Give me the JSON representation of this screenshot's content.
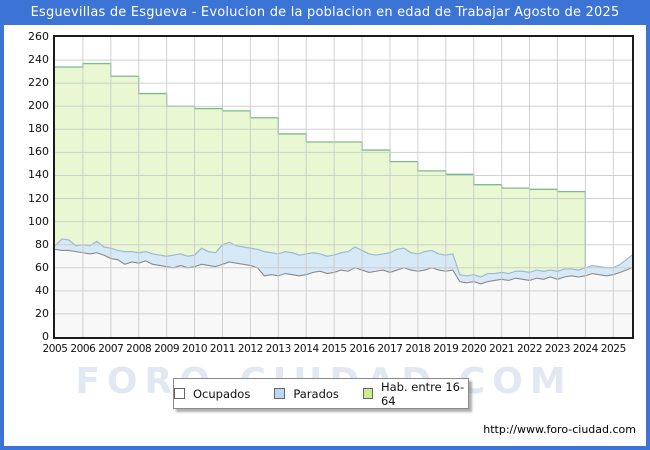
{
  "header": {
    "title": "Esguevillas de Esgueva - Evolucion de la poblacion en edad de Trabajar Agosto de 2025"
  },
  "footer": {
    "url": "http://www.foro-ciudad.com"
  },
  "watermark": "FORO-CIUDAD.COM",
  "legend": {
    "items": [
      {
        "label": "Ocupados",
        "swatch": "#fdfdfd"
      },
      {
        "label": "Parados",
        "swatch": "#bcd8f0"
      },
      {
        "label": "Hab. entre 16-64",
        "swatch": "#cdeb8f"
      }
    ]
  },
  "colors": {
    "frame_blue": "#3b74d4",
    "title_text": "#ffffff",
    "grid": "#c9c9c9",
    "plot_border": "#1b1b1b",
    "hab_fill": "#e9f8d2",
    "hab_line": "#7dba8c",
    "parados_fill": "#d7e8f7",
    "parados_line": "#9db9d6",
    "ocupados_fill": "#f8f8f8",
    "ocupados_line": "#8a8a8a"
  },
  "chart_data": {
    "type": "area",
    "title": "Esguevillas de Esgueva - Evolucion de la poblacion en edad de Trabajar Agosto de 2025",
    "xlabel": "",
    "ylabel": "",
    "x_axis": {
      "min": 2005,
      "max": 2025.67,
      "ticks": [
        2005,
        2006,
        2007,
        2008,
        2009,
        2010,
        2011,
        2012,
        2013,
        2014,
        2015,
        2016,
        2017,
        2018,
        2019,
        2020,
        2021,
        2022,
        2023,
        2024,
        2025
      ]
    },
    "y_axis": {
      "min": 0,
      "max": 260,
      "ticks": [
        0,
        20,
        40,
        60,
        80,
        100,
        120,
        140,
        160,
        180,
        200,
        220,
        240,
        260
      ]
    },
    "grid": true,
    "legend_position": "bottom",
    "series": [
      {
        "name": "Hab. entre 16-64",
        "type": "step-area-annual",
        "years": [
          2005,
          2006,
          2007,
          2008,
          2009,
          2010,
          2011,
          2012,
          2013,
          2014,
          2015,
          2016,
          2017,
          2018,
          2019,
          2020,
          2021,
          2022,
          2023
        ],
        "values": [
          234,
          237,
          226,
          211,
          200,
          198,
          196,
          190,
          176,
          169,
          169,
          162,
          152,
          144,
          141,
          132,
          129,
          128,
          126
        ],
        "ends_at": 2024
      },
      {
        "name": "Ocupados",
        "type": "area",
        "x_start": 2005,
        "x_step": 0.25,
        "values": [
          76,
          75,
          75,
          74,
          73,
          72,
          73,
          71,
          68,
          67,
          63,
          65,
          64,
          66,
          63,
          62,
          61,
          60,
          62,
          60,
          61,
          63,
          62,
          61,
          63,
          65,
          64,
          63,
          62,
          60,
          53,
          54,
          53,
          55,
          54,
          53,
          54,
          56,
          57,
          55,
          56,
          58,
          57,
          60,
          58,
          56,
          57,
          58,
          56,
          58,
          60,
          58,
          57,
          58,
          60,
          58,
          57,
          58,
          48,
          47,
          48,
          46,
          48,
          49,
          50,
          49,
          51,
          50,
          49,
          51,
          50,
          52,
          50,
          52,
          53,
          52,
          53,
          55,
          54,
          53,
          54,
          56,
          60
        ]
      },
      {
        "name": "Parados",
        "type": "area-stacked-on-ocupados",
        "x_start": 2005,
        "x_step": 0.25,
        "values": [
          3,
          10,
          9,
          5,
          7,
          7,
          10,
          7,
          9,
          8,
          11,
          9,
          9,
          8,
          9,
          9,
          9,
          11,
          10,
          10,
          10,
          14,
          12,
          12,
          17,
          17,
          15,
          15,
          15,
          16,
          21,
          19,
          19,
          19,
          19,
          18,
          18,
          17,
          15,
          15,
          15,
          15,
          17,
          18,
          17,
          16,
          14,
          14,
          17,
          18,
          17,
          15,
          15,
          16,
          15,
          14,
          14,
          14,
          6,
          6,
          6,
          6,
          7,
          6,
          6,
          6,
          6,
          7,
          7,
          7,
          7,
          6,
          7,
          7,
          6,
          6,
          7,
          7,
          7,
          7,
          6,
          7,
          11
        ]
      }
    ]
  }
}
